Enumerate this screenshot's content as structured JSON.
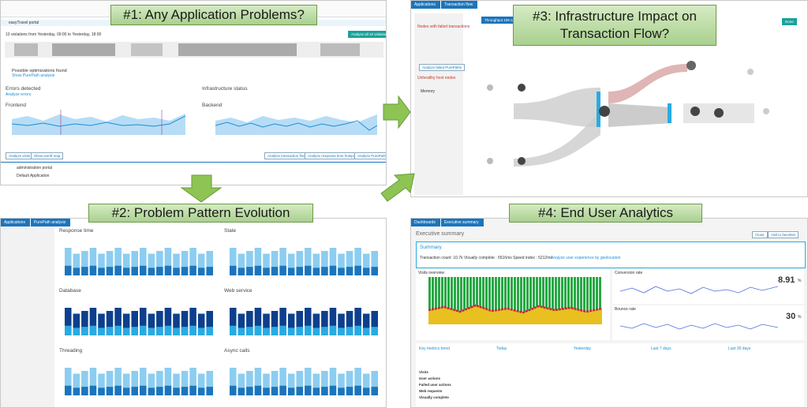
{
  "callouts": [
    "#1: Any Application Problems?",
    "#3: Infrastructure Impact on Transaction Flow?",
    "#2: Problem Pattern Evolution",
    "#4: End User Analytics"
  ],
  "panel1": {
    "violations": "10 violations from Yesterday, 09:00 to Yesterday, 18:00",
    "button": "Analyze all 10 violations",
    "optimizations": "Possible optimizations found",
    "show": "Show PurePath analysis",
    "errors": "Errors detected",
    "analyze_errors": "Analyze errors",
    "infra": "Infrastructure status",
    "frontend": "Frontend",
    "backend": "Backend",
    "rows": [
      "easyTravel portal",
      "administration portal",
      "Default Application"
    ],
    "buttons": [
      "Analyze visits",
      "Show world map",
      "Analyze transaction flow",
      "Analyze response time hotspots",
      "Analyze PurePaths"
    ]
  },
  "panel2": {
    "breadcrumb": [
      "Applications",
      "PurePath analysis"
    ],
    "charts": [
      "Response time",
      "State",
      "Database",
      "Web service",
      "Threading",
      "Async calls"
    ]
  },
  "panel3": {
    "breadcrumb": [
      "Applications",
      "Transaction flow"
    ],
    "throughput": "Throughput 106 calls/min",
    "analyze": "Analyze failed PurePaths",
    "filter": "Nodes with failed transactions",
    "infra": "Unhealthy host nodes",
    "memory": "Memory",
    "apply": "Done"
  },
  "panel4": {
    "breadcrumb": [
      "Dashboards",
      "Executive summary"
    ],
    "title": "Executive summary",
    "buttons": [
      "Close",
      "Add to favorites"
    ],
    "summary": "Summary",
    "summary_line": "Transaction count: 10.7k  Visually complete : 6516ms  Speed index : 5212ms",
    "link": "Analyze user experience by geolocation",
    "visits": "Visits overview",
    "conversion": "Conversion rate",
    "conversion_value": "8.91",
    "bounce": "Bounce rate",
    "bounce_value": "30",
    "unit": "%",
    "trend_headers": [
      "Key metrics trend",
      "Today",
      "Yesterday",
      "Last 7 days",
      "Last 30 days"
    ],
    "metrics": [
      "Visits",
      "User actions",
      "Failed user actions",
      "Web requests",
      "Visually complete"
    ]
  }
}
